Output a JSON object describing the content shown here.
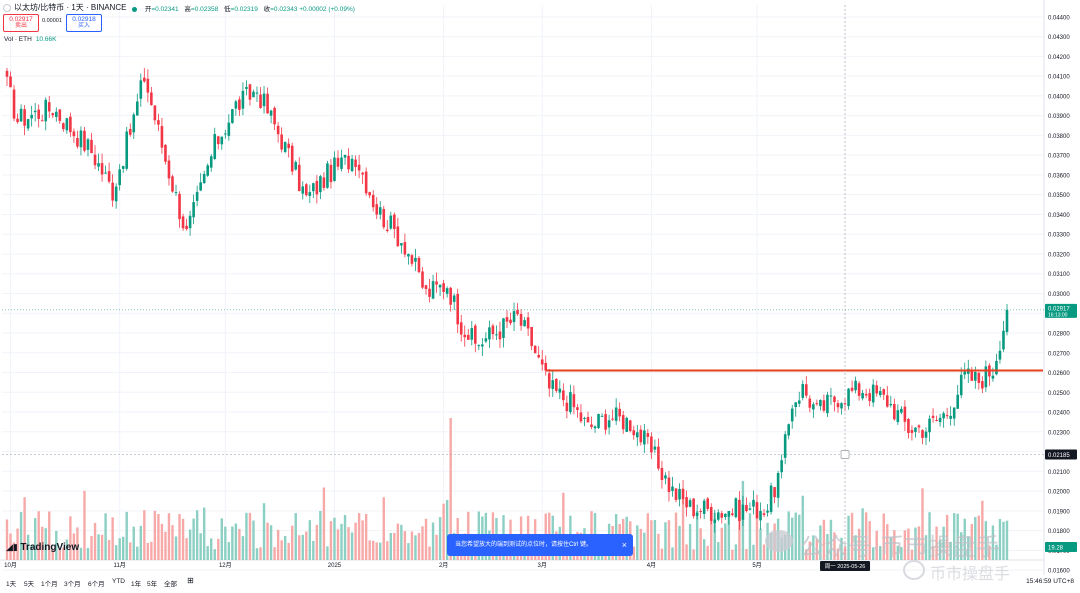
{
  "header": {
    "symbol": "以太坊/比特币 · 1天 · BINANCE",
    "ohlc": [
      {
        "label": "开",
        "value": "=0.02341"
      },
      {
        "label": "高",
        "value": "=0.02358"
      },
      {
        "label": "低",
        "value": "=0.02319"
      },
      {
        "label": "收",
        "value": "=0.02343 +0.00002 (+0.09%)"
      }
    ],
    "sell_price": "0.02917",
    "sell_label": "卖出",
    "spread": "0.00001",
    "buy_price": "0.02918",
    "buy_label": "买入",
    "volume_label": "Vol · ETH",
    "volume_value": "10.66K"
  },
  "notice": {
    "text": "当您希望放大的端到测试的点位时，请按住Ctrl 键。",
    "close": "×"
  },
  "logo": "TradingView",
  "bottom": {
    "ranges": [
      "1天",
      "5天",
      "1个月",
      "3个月",
      "6个月",
      "YTD",
      "1年",
      "5年",
      "全部"
    ],
    "time": "15:46:59 UTC+8"
  },
  "watermark": {
    "line1": "公众号·币市操盘手",
    "line2": "币市操盘手"
  },
  "colors": {
    "up": "#089981",
    "down": "#f23645",
    "upVol": "#8ccfc3",
    "downVol": "#f7a9a8",
    "line": "#e8401d",
    "grid": "#f0f3fa"
  },
  "chart_data": {
    "type": "candlestick",
    "y_ticks": [
      "0.04400",
      "0.04300",
      "0.04200",
      "0.04100",
      "0.04000",
      "0.03900",
      "0.03800",
      "0.03700",
      "0.03600",
      "0.03500",
      "0.03400",
      "0.03300",
      "0.03200",
      "0.03100",
      "0.03000",
      "0.02900",
      "0.02800",
      "0.02700",
      "0.02600",
      "0.02500",
      "0.02400",
      "0.02300",
      "0.02200",
      "0.02100",
      "0.02000",
      "0.01900",
      "0.01800",
      "0.01700",
      "0.01600"
    ],
    "ylim": [
      0.0156,
      0.0446
    ],
    "x_ticks": [
      "10月",
      "11月",
      "12月",
      "2025",
      "2月",
      "3月",
      "4月",
      "5月"
    ],
    "current_price": "0.02917",
    "current_countdown": "16:13:00",
    "crosshair_price": "0.02185",
    "crosshair_date": "周一 2025-05-26",
    "volume_label": "19.28",
    "resistance_level": 0.0261,
    "keypoints": [
      {
        "date": "2024-09-30",
        "close": 0.0405
      },
      {
        "date": "2024-10-03",
        "close": 0.0388
      },
      {
        "date": "2024-10-13",
        "close": 0.0394
      },
      {
        "date": "2024-10-19",
        "close": 0.0382
      },
      {
        "date": "2024-10-24",
        "close": 0.0372
      },
      {
        "date": "2024-10-30",
        "close": 0.0352
      },
      {
        "date": "2024-11-04",
        "close": 0.0382
      },
      {
        "date": "2024-11-08",
        "close": 0.041
      },
      {
        "date": "2024-11-14",
        "close": 0.0368
      },
      {
        "date": "2024-11-20",
        "close": 0.033
      },
      {
        "date": "2024-11-28",
        "close": 0.0375
      },
      {
        "date": "2024-12-04",
        "close": 0.0395
      },
      {
        "date": "2024-12-10",
        "close": 0.0403
      },
      {
        "date": "2024-12-17",
        "close": 0.0378
      },
      {
        "date": "2024-12-24",
        "close": 0.0348
      },
      {
        "date": "2024-12-31",
        "close": 0.0362
      },
      {
        "date": "2025-01-07",
        "close": 0.037
      },
      {
        "date": "2025-01-13",
        "close": 0.0343
      },
      {
        "date": "2025-01-21",
        "close": 0.0325
      },
      {
        "date": "2025-01-27",
        "close": 0.03
      },
      {
        "date": "2025-02-02",
        "close": 0.0305
      },
      {
        "date": "2025-02-06",
        "close": 0.0285
      },
      {
        "date": "2025-02-10",
        "close": 0.0274
      },
      {
        "date": "2025-02-17",
        "close": 0.0282
      },
      {
        "date": "2025-02-22",
        "close": 0.0288
      },
      {
        "date": "2025-02-26",
        "close": 0.0275
      },
      {
        "date": "2025-03-03",
        "close": 0.0252
      },
      {
        "date": "2025-03-09",
        "close": 0.0245
      },
      {
        "date": "2025-03-14",
        "close": 0.0232
      },
      {
        "date": "2025-03-20",
        "close": 0.0238
      },
      {
        "date": "2025-03-26",
        "close": 0.0235
      },
      {
        "date": "2025-04-01",
        "close": 0.022
      },
      {
        "date": "2025-04-07",
        "close": 0.02
      },
      {
        "date": "2025-04-12",
        "close": 0.0192
      },
      {
        "date": "2025-04-20",
        "close": 0.019
      },
      {
        "date": "2025-04-28",
        "close": 0.0191
      },
      {
        "date": "2025-05-04",
        "close": 0.0192
      },
      {
        "date": "2025-05-08",
        "close": 0.0212
      },
      {
        "date": "2025-05-11",
        "close": 0.0245
      },
      {
        "date": "2025-05-14",
        "close": 0.0252
      },
      {
        "date": "2025-05-18",
        "close": 0.024
      },
      {
        "date": "2025-05-24",
        "close": 0.0248
      },
      {
        "date": "2025-05-31",
        "close": 0.0252
      },
      {
        "date": "2025-06-07",
        "close": 0.0246
      },
      {
        "date": "2025-06-13",
        "close": 0.0232
      },
      {
        "date": "2025-06-18",
        "close": 0.0232
      },
      {
        "date": "2025-06-24",
        "close": 0.024
      },
      {
        "date": "2025-06-29",
        "close": 0.0258
      },
      {
        "date": "2025-07-03",
        "close": 0.0256
      },
      {
        "date": "2025-07-07",
        "close": 0.0262
      },
      {
        "date": "2025-07-09",
        "close": 0.0277
      },
      {
        "date": "2025-07-11",
        "close": 0.029
      }
    ]
  }
}
